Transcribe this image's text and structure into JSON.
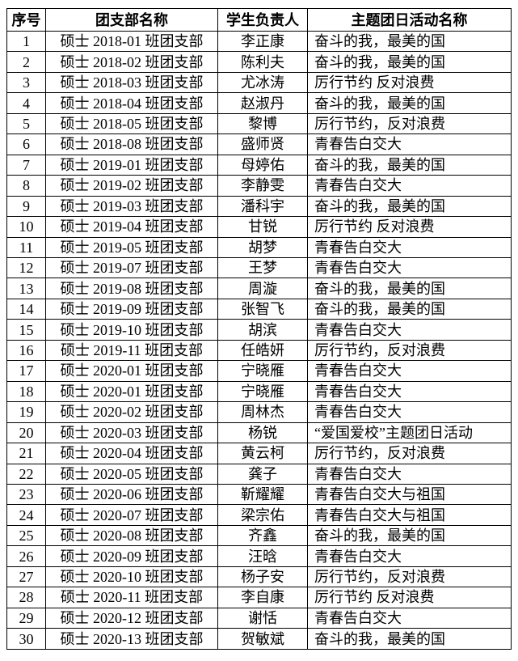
{
  "colors": {
    "background": "#ffffff",
    "border": "#000000",
    "text": "#000000"
  },
  "table": {
    "headers": [
      "序号",
      "团支部名称",
      "学生负责人",
      "主题团日活动名称"
    ],
    "rows": [
      [
        "1",
        "硕士 2018-01 班团支部",
        "李正康",
        "奋斗的我，最美的国"
      ],
      [
        "2",
        "硕士 2018-02 班团支部",
        "陈利夫",
        "奋斗的我，最美的国"
      ],
      [
        "3",
        "硕士 2018-03 班团支部",
        "尤冰涛",
        "厉行节约 反对浪费"
      ],
      [
        "4",
        "硕士 2018-04 班团支部",
        "赵淑丹",
        "奋斗的我，最美的国"
      ],
      [
        "5",
        "硕士 2018-05 班团支部",
        "黎博",
        "厉行节约，反对浪费"
      ],
      [
        "6",
        "硕士 2018-08 班团支部",
        "盛师贤",
        "青春告白交大"
      ],
      [
        "7",
        "硕士 2019-01 班团支部",
        "母婷佑",
        "奋斗的我，最美的国"
      ],
      [
        "8",
        "硕士 2019-02 班团支部",
        "李静雯",
        "青春告白交大"
      ],
      [
        "9",
        "硕士 2019-03 班团支部",
        "潘科宇",
        "奋斗的我，最美的国"
      ],
      [
        "10",
        "硕士 2019-04 班团支部",
        "甘锐",
        "厉行节约 反对浪费"
      ],
      [
        "11",
        "硕士 2019-05 班团支部",
        "胡梦",
        "青春告白交大"
      ],
      [
        "12",
        "硕士 2019-07 班团支部",
        "王梦",
        "青春告白交大"
      ],
      [
        "13",
        "硕士 2019-08 班团支部",
        "周漩",
        "奋斗的我，最美的国"
      ],
      [
        "14",
        "硕士 2019-09 班团支部",
        "张智飞",
        "奋斗的我，最美的国"
      ],
      [
        "15",
        "硕士 2019-10 班团支部",
        "胡滨",
        "青春告白交大"
      ],
      [
        "16",
        "硕士 2019-11 班团支部",
        "任皓妍",
        "厉行节约，反对浪费"
      ],
      [
        "17",
        "硕士 2020-01 班团支部",
        "宁晓雁",
        "青春告白交大"
      ],
      [
        "18",
        "硕士 2020-01 班团支部",
        "宁晓雁",
        "青春告白交大"
      ],
      [
        "19",
        "硕士 2020-02 班团支部",
        "周林杰",
        "青春告白交大"
      ],
      [
        "20",
        "硕士 2020-03 班团支部",
        "杨锐",
        "“爱国爱校”主题团日活动"
      ],
      [
        "21",
        "硕士 2020-04 班团支部",
        "黄云柯",
        "厉行节约，反对浪费"
      ],
      [
        "22",
        "硕士 2020-05 班团支部",
        "龚子",
        "青春告白交大"
      ],
      [
        "23",
        "硕士 2020-06 班团支部",
        "靳耀耀",
        "青春告白交大与祖国"
      ],
      [
        "24",
        "硕士 2020-07 班团支部",
        "梁宗佑",
        "青春告白交大与祖国"
      ],
      [
        "25",
        "硕士 2020-08 班团支部",
        "齐鑫",
        "奋斗的我，最美的国"
      ],
      [
        "26",
        "硕士 2020-09 班团支部",
        "汪晗",
        "青春告白交大"
      ],
      [
        "27",
        "硕士 2020-10 班团支部",
        "杨子安",
        "厉行节约，反对浪费"
      ],
      [
        "28",
        "硕士 2020-11 班团支部",
        "李自康",
        "厉行节约 反对浪费"
      ],
      [
        "29",
        "硕士 2020-12 班团支部",
        "谢恬",
        "青春告白交大"
      ],
      [
        "30",
        "硕士 2020-13 班团支部",
        "贺敏斌",
        "奋斗的我，最美的国"
      ]
    ]
  }
}
